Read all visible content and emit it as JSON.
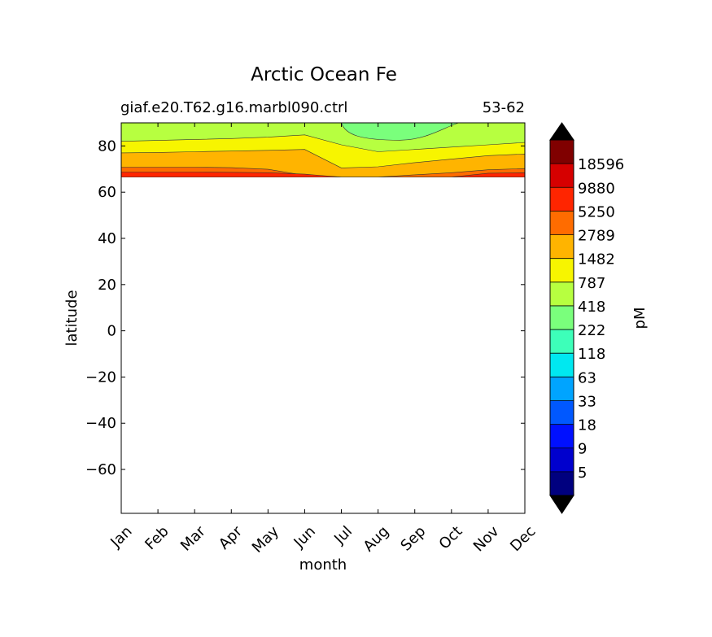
{
  "chart_data": {
    "type": "heatmap",
    "title": "Arctic Ocean Fe",
    "subtitle_left": "giaf.e20.T62.g16.marbl090.ctrl",
    "subtitle_right": "53-62",
    "xlabel": "month",
    "ylabel": "latitude",
    "colorbar_label": "pM",
    "x_categories": [
      "Jan",
      "Feb",
      "Mar",
      "Apr",
      "May",
      "Jun",
      "Jul",
      "Aug",
      "Sep",
      "Oct",
      "Nov",
      "Dec"
    ],
    "y_ticks": [
      80,
      60,
      40,
      20,
      0,
      -20,
      -40,
      -60
    ],
    "y_tick_labels": [
      "80",
      "60",
      "40",
      "20",
      "0",
      "−20",
      "−40",
      "−60"
    ],
    "ylim": [
      -79,
      90
    ],
    "data_lat_min": 66.5,
    "contour_levels": [
      "5",
      "9",
      "18",
      "33",
      "63",
      "118",
      "222",
      "418",
      "787",
      "1482",
      "2789",
      "5250",
      "9880",
      "18596"
    ],
    "colors": {
      "under": "#000000",
      "over": "#000000",
      "bins": [
        "#00007f",
        "#0000cd",
        "#0010ff",
        "#0058ff",
        "#00a4ff",
        "#00e8f0",
        "#3dffb9",
        "#7aff7c",
        "#b7ff40",
        "#f7f500",
        "#ffb400",
        "#ff6c00",
        "#ff2500",
        "#d60000",
        "#800000"
      ]
    },
    "band_boundaries_note": "boundaries in latitude, by month index 0-11",
    "bands": [
      {
        "level": "5250",
        "color_index": 12,
        "upper": [
          68.7,
          68.7,
          68.7,
          68.6,
          68.4,
          67.8,
          66.5,
          66.5,
          66.5,
          66.5,
          68.2,
          68.4
        ]
      },
      {
        "level": "2789",
        "color_index": 11,
        "upper": [
          70.8,
          70.8,
          70.8,
          70.6,
          69.9,
          67.3,
          66.5,
          66.5,
          67.5,
          68.4,
          69.7,
          70.2
        ]
      },
      {
        "level": "1482",
        "color_index": 10,
        "upper": [
          77.0,
          77.2,
          77.5,
          77.8,
          78.1,
          78.5,
          70.5,
          71.0,
          72.8,
          74.3,
          75.8,
          76.5
        ]
      },
      {
        "level": "787",
        "color_index": 9,
        "upper": [
          82.0,
          82.4,
          82.8,
          83.2,
          83.8,
          84.8,
          80.5,
          77.5,
          78.5,
          79.5,
          80.5,
          81.5
        ]
      },
      {
        "level": "418",
        "color_index": 8,
        "upper": [
          90,
          90,
          90,
          90,
          90,
          90,
          90,
          90,
          90,
          90,
          90,
          90
        ]
      }
    ],
    "inner_band": {
      "level": "418",
      "color_index": 7,
      "month_start": 6.0,
      "month_end": 9.2,
      "min_lat": 82.5
    }
  }
}
